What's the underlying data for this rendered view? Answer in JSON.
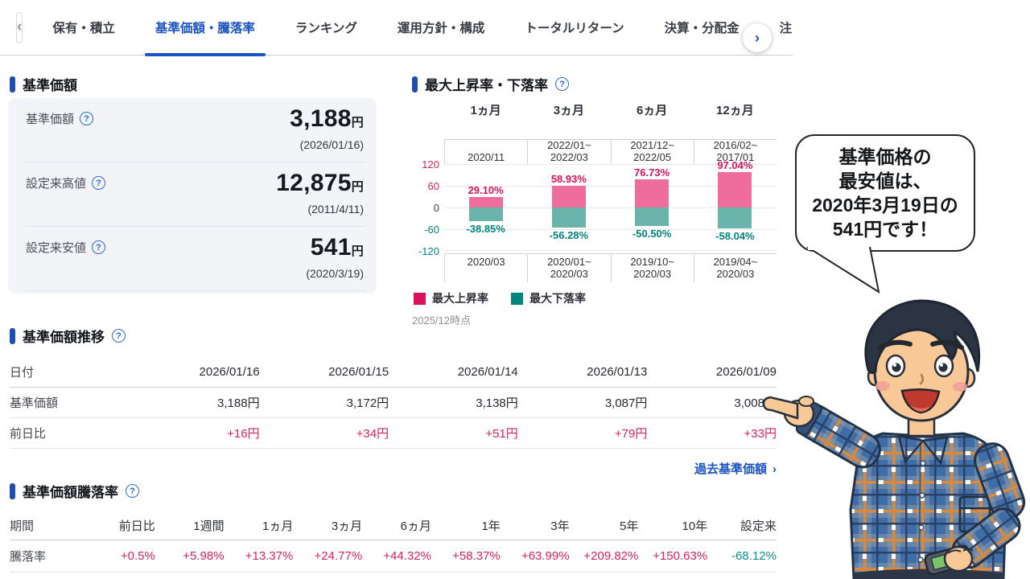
{
  "icons": {
    "back": "‹",
    "next": "›",
    "help": "?",
    "chevron": "›"
  },
  "tabs": {
    "items": [
      {
        "label": "保有・積立"
      },
      {
        "label": "基準価額・騰落率"
      },
      {
        "label": "ランキング"
      },
      {
        "label": "運用方針・構成"
      },
      {
        "label": "トータルリターン"
      },
      {
        "label": "決算・分配金"
      },
      {
        "label": "注"
      }
    ]
  },
  "price_panel": {
    "title": "基準価額",
    "rows": [
      {
        "label": "基準価額",
        "value": "3,188",
        "unit": "円",
        "date": "(2026/01/16)"
      },
      {
        "label": "設定来高値",
        "value": "12,875",
        "unit": "円",
        "date": "(2011/4/11)"
      },
      {
        "label": "設定来安値",
        "value": "541",
        "unit": "円",
        "date": "(2020/3/19)"
      }
    ]
  },
  "updown_panel": {
    "title": "最大上昇率・下落率",
    "columns": [
      "1ヵ月",
      "3ヵ月",
      "6ヵ月",
      "12ヵ月"
    ],
    "top_periods": [
      {
        "line1": "2020/11",
        "line2": ""
      },
      {
        "line1": "2022/01~",
        "line2": "2022/03"
      },
      {
        "line1": "2021/12~",
        "line2": "2022/05"
      },
      {
        "line1": "2016/02~",
        "line2": "2017/01"
      }
    ],
    "bottom_periods": [
      {
        "line1": "2020/03",
        "line2": ""
      },
      {
        "line1": "2020/01~",
        "line2": "2020/03"
      },
      {
        "line1": "2019/10~",
        "line2": "2020/03"
      },
      {
        "line1": "2019/04~",
        "line2": "2020/03"
      }
    ],
    "up_labels": [
      "29.10%",
      "58.93%",
      "76.73%",
      "97.04%"
    ],
    "down_labels": [
      "-38.85%",
      "-56.28%",
      "-50.50%",
      "-58.04%"
    ],
    "legend": {
      "up": "最大上昇率",
      "down": "最大下落率"
    },
    "note": "2025/12時点"
  },
  "chart_data": {
    "type": "bar",
    "title": "最大上昇率・下落率",
    "categories": [
      "1ヵ月",
      "3ヵ月",
      "6ヵ月",
      "12ヵ月"
    ],
    "series": [
      {
        "name": "最大上昇率",
        "values": [
          29.1,
          58.93,
          76.73,
          97.04
        ],
        "periods": [
          "2020/11",
          "2022/01~2022/03",
          "2021/12~2022/05",
          "2016/02~2017/01"
        ],
        "color": "#d9125e"
      },
      {
        "name": "最大下落率",
        "values": [
          -38.85,
          -56.28,
          -50.5,
          -58.04
        ],
        "periods": [
          "2020/03",
          "2020/01~2020/03",
          "2019/10~2020/03",
          "2019/04~2020/03"
        ],
        "color": "#00847c"
      }
    ],
    "ylim": [
      -120,
      120
    ],
    "yticks": [
      120,
      60,
      0,
      -60,
      -120
    ],
    "grid": true,
    "legend_position": "bottom",
    "as_of": "2025/12時点"
  },
  "trend": {
    "title": "基準価額推移",
    "row_labels": {
      "date": "日付",
      "price": "基準価額",
      "change": "前日比"
    },
    "dates": [
      "2026/01/16",
      "2026/01/15",
      "2026/01/14",
      "2026/01/13",
      "2026/01/09"
    ],
    "prices": [
      "3,188円",
      "3,172円",
      "3,138円",
      "3,087円",
      "3,008円"
    ],
    "changes": [
      "+16円",
      "+34円",
      "+51円",
      "+79円",
      "+33円"
    ],
    "link": "過去基準価額"
  },
  "returns": {
    "title": "基準価額騰落率",
    "headers": [
      "期間",
      "前日比",
      "1週間",
      "1ヵ月",
      "3ヵ月",
      "6ヵ月",
      "1年",
      "3年",
      "5年",
      "10年",
      "設定来"
    ],
    "row_label": "騰落率",
    "values": [
      "+0.5%",
      "+5.98%",
      "+13.37%",
      "+24.77%",
      "+44.32%",
      "+58.37%",
      "+63.99%",
      "+209.82%",
      "+150.63%",
      "-68.12%"
    ]
  },
  "bubble": {
    "lines": [
      "基準価格の",
      "最安値は、",
      "2020年3月19日の",
      "541円です！"
    ]
  },
  "colors": {
    "accent_blue": "#1a53c2",
    "up_bar_pink": "#ef6d9d",
    "up_text_crimson": "#d9125e",
    "down_bar_teal": "#6bb4ac",
    "down_text_teal": "#00847c",
    "negative_teal": "#0e8e98"
  }
}
